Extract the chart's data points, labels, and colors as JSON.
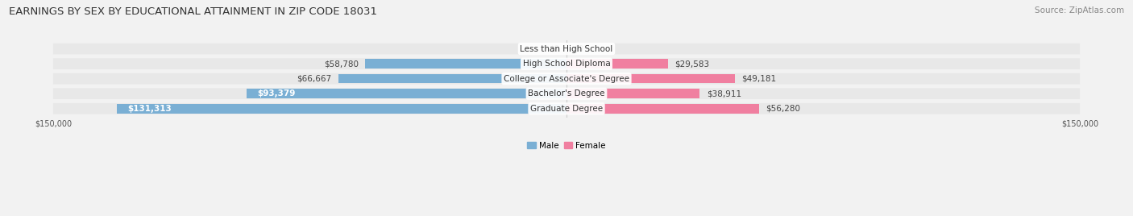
{
  "title": "EARNINGS BY SEX BY EDUCATIONAL ATTAINMENT IN ZIP CODE 18031",
  "source": "Source: ZipAtlas.com",
  "categories": [
    "Less than High School",
    "High School Diploma",
    "College or Associate's Degree",
    "Bachelor's Degree",
    "Graduate Degree"
  ],
  "male_values": [
    0,
    58780,
    66667,
    93379,
    131313
  ],
  "female_values": [
    0,
    29583,
    49181,
    38911,
    56280
  ],
  "male_color": "#7aafd4",
  "female_color": "#f07fa0",
  "male_label": "Male",
  "female_label": "Female",
  "xlim_abs": 150000,
  "background_color": "#f2f2f2",
  "row_bg_color": "#e8e8e8",
  "title_fontsize": 9.5,
  "source_fontsize": 7.5,
  "label_fontsize": 7.5,
  "value_fontsize": 7.5
}
